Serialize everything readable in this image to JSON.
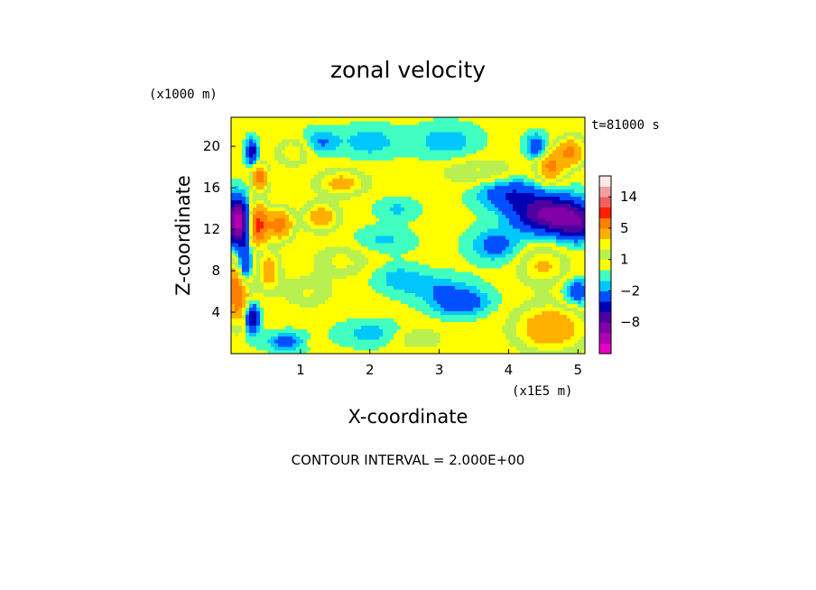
{
  "title": "zonal velocity",
  "time_label": "t=81000 s",
  "footer": "CONTOUR INTERVAL = 2.000E+00",
  "chart_data": {
    "type": "heatmap",
    "variable": "zonal velocity",
    "xlabel": "X-coordinate",
    "ylabel": "Z-coordinate",
    "x_unit_label": "(x1E5 m)",
    "y_unit_label": "(x1000 m)",
    "xlim": [
      0.0,
      5.1
    ],
    "ylim": [
      0.0,
      22.8
    ],
    "x_ticks": [
      1,
      2,
      3,
      4,
      5
    ],
    "y_ticks": [
      4,
      8,
      12,
      16,
      20
    ],
    "contour_interval": 2.0,
    "colorbar": {
      "levels": [
        -14,
        -12,
        -10,
        -8,
        -6,
        -4,
        -2,
        -1,
        0,
        1,
        2,
        3,
        5,
        8,
        11,
        14,
        17
      ],
      "colors": [
        "#e800c8",
        "#b000b0",
        "#8000a8",
        "#5000a0",
        "#0000b4",
        "#0050ff",
        "#00c8ff",
        "#40ffc0",
        "#ffff00",
        "#b8f050",
        "#ffff00",
        "#ffb000",
        "#ff8000",
        "#ff1e00",
        "#f06060",
        "#f0a0a0",
        "#ffe8e8"
      ],
      "tick_labels": [
        {
          "value": 14,
          "label": "14"
        },
        {
          "value": 5,
          "label": "5"
        },
        {
          "value": 1,
          "label": "1"
        },
        {
          "value": -2,
          "label": "−2"
        },
        {
          "value": -8,
          "label": "−8"
        }
      ]
    }
  }
}
